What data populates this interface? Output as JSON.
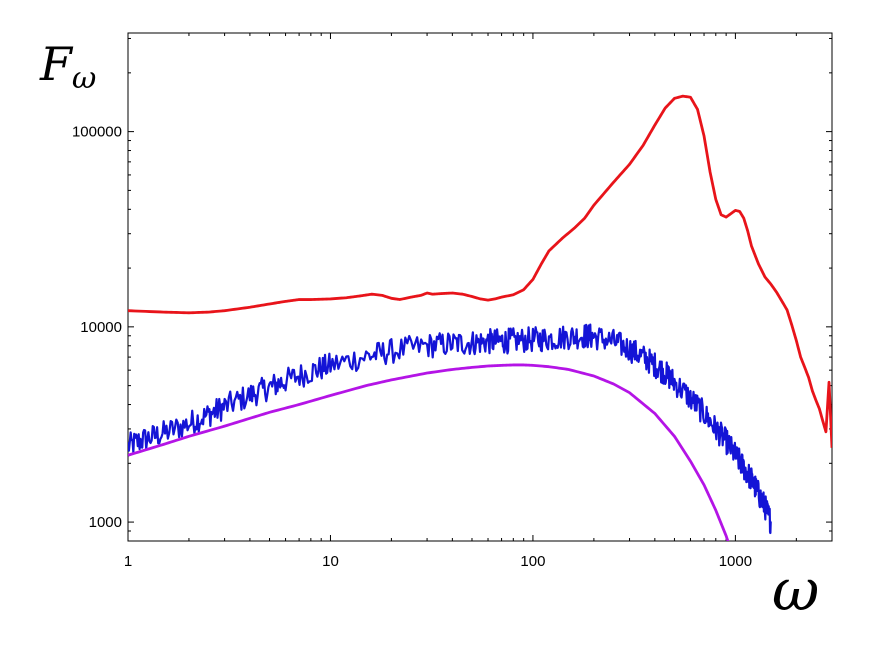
{
  "chart_data": {
    "type": "line",
    "title": "",
    "xlabel": "ω",
    "ylabel": "F_ω",
    "ylabel_main": "F",
    "ylabel_sub": "ω",
    "x_scale": "log",
    "y_scale": "log",
    "xlim": [
      1,
      3000
    ],
    "ylim": [
      800,
      320000
    ],
    "grid": false,
    "legend": "none",
    "x_ticks": [
      {
        "value": 1,
        "label": "1"
      },
      {
        "value": 10,
        "label": "10"
      },
      {
        "value": 100,
        "label": "100"
      },
      {
        "value": 1000,
        "label": "1000"
      }
    ],
    "y_ticks": [
      {
        "value": 1000,
        "label": "1000"
      },
      {
        "value": 10000,
        "label": "10000"
      },
      {
        "value": 100000,
        "label": "100000"
      }
    ],
    "series": [
      {
        "color": "#e8141a",
        "noise": 0,
        "x": [
          1,
          1.5,
          2,
          2.5,
          3,
          4,
          5,
          6,
          7,
          8,
          10,
          12,
          14,
          16,
          18,
          20,
          22,
          25,
          28,
          30,
          32,
          35,
          40,
          45,
          50,
          55,
          60,
          65,
          70,
          80,
          90,
          100,
          110,
          120,
          140,
          160,
          180,
          200,
          250,
          300,
          350,
          400,
          450,
          500,
          550,
          600,
          650,
          700,
          750,
          800,
          850,
          900,
          950,
          1000,
          1050,
          1100,
          1150,
          1200,
          1300,
          1400,
          1500,
          1600,
          1700,
          1800,
          1900,
          2000,
          2100,
          2200,
          2300,
          2400,
          2500,
          2600,
          2700,
          2800,
          2900,
          3000
        ],
        "y": [
          12100,
          11900,
          11800,
          11900,
          12100,
          12600,
          13100,
          13500,
          13800,
          13800,
          13900,
          14100,
          14400,
          14700,
          14500,
          14000,
          13800,
          14200,
          14500,
          14900,
          14700,
          14800,
          14900,
          14700,
          14300,
          13900,
          13700,
          13900,
          14200,
          14600,
          15500,
          17500,
          21000,
          24500,
          28500,
          32000,
          36000,
          42000,
          55000,
          68000,
          85000,
          108000,
          132000,
          148000,
          152000,
          150000,
          130000,
          95000,
          62000,
          45000,
          37500,
          36500,
          38000,
          39500,
          39000,
          36000,
          31000,
          26000,
          21000,
          18000,
          16500,
          15000,
          13500,
          12200,
          10200,
          8500,
          7000,
          6200,
          5500,
          4700,
          4200,
          3800,
          3300,
          2900,
          5200,
          2400
        ]
      },
      {
        "color": "#1414d6",
        "noise": 0.065,
        "x": [
          1,
          1.2,
          1.5,
          2,
          2.5,
          3,
          4,
          5,
          6,
          8,
          10,
          15,
          20,
          30,
          40,
          50,
          60,
          70,
          80,
          100,
          120,
          150,
          180,
          200,
          250,
          300,
          350,
          400,
          450,
          500,
          600,
          700,
          800,
          900,
          1000,
          1100,
          1200,
          1300,
          1400,
          1500
        ],
        "y": [
          2450,
          2650,
          2850,
          3200,
          3550,
          3900,
          4450,
          4900,
          5300,
          5900,
          6350,
          7050,
          7500,
          8000,
          8200,
          8300,
          8400,
          8450,
          8500,
          8600,
          8700,
          8900,
          9000,
          8900,
          8400,
          7700,
          7000,
          6400,
          5800,
          5200,
          4300,
          3600,
          3000,
          2600,
          2200,
          1900,
          1650,
          1400,
          1200,
          1000
        ]
      },
      {
        "color": "#b414e6",
        "noise": 0,
        "x": [
          1,
          1.5,
          2,
          3,
          4,
          5,
          7,
          10,
          15,
          20,
          30,
          40,
          50,
          60,
          70,
          80,
          90,
          100,
          120,
          150,
          200,
          250,
          300,
          400,
          500,
          600,
          700,
          800,
          900,
          950
        ],
        "y": [
          2200,
          2500,
          2750,
          3100,
          3400,
          3650,
          4000,
          4450,
          5000,
          5350,
          5800,
          6050,
          6200,
          6300,
          6350,
          6380,
          6380,
          6350,
          6250,
          6050,
          5600,
          5100,
          4600,
          3600,
          2750,
          2050,
          1550,
          1150,
          850,
          720
        ]
      }
    ]
  }
}
